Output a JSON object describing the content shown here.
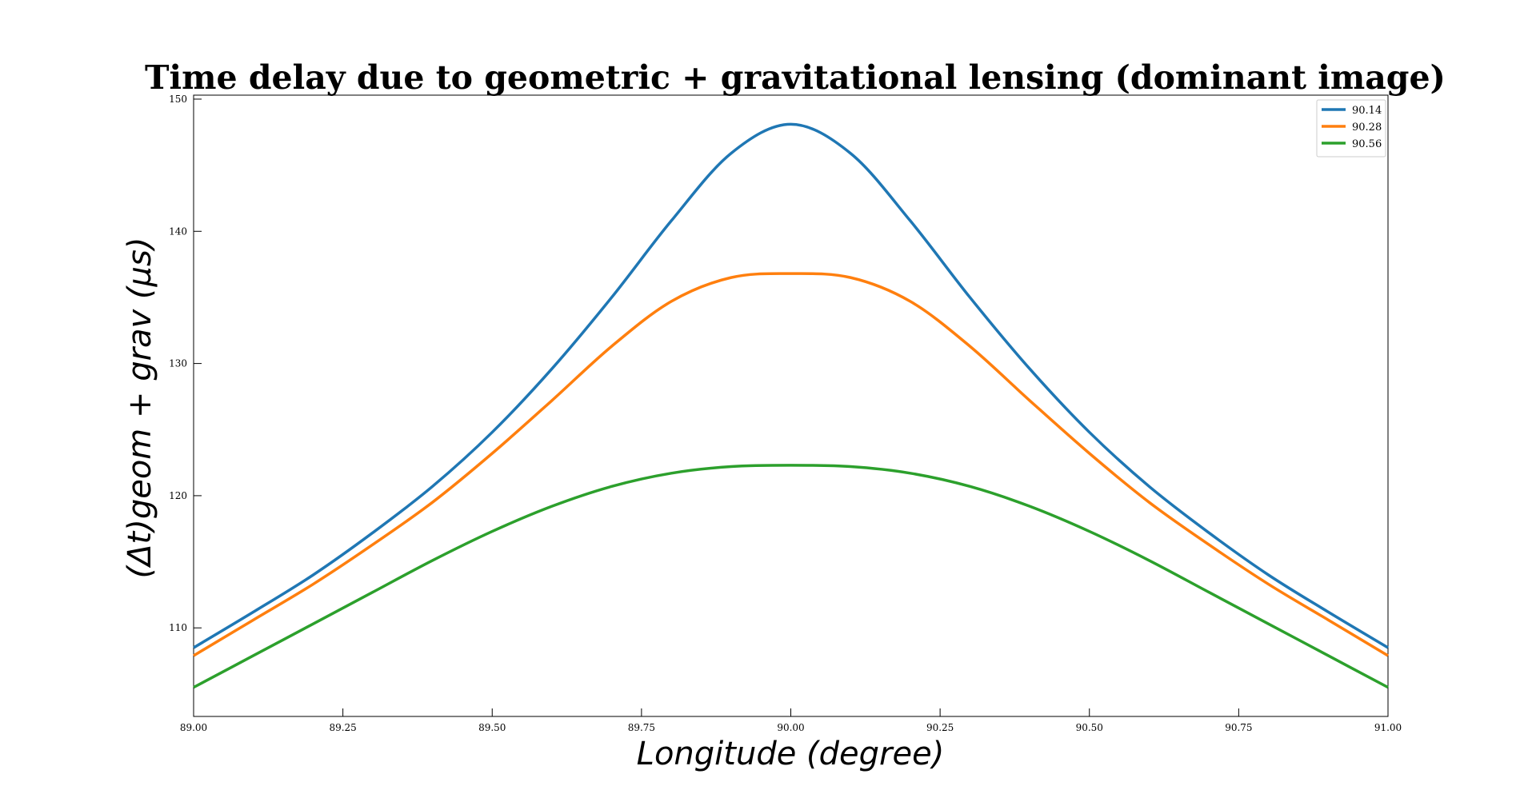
{
  "chart_data": {
    "type": "line",
    "title": "Time delay due to geometric + gravitational lensing (dominant image)",
    "xlabel": "Longitude   (degree)",
    "ylabel": "(Δt)geom + grav   (μs)",
    "xlim": [
      89.0,
      91.0
    ],
    "ylim": [
      103.3,
      150.3
    ],
    "xticks": [
      "89.00",
      "89.25",
      "89.50",
      "89.75",
      "90.00",
      "90.25",
      "90.50",
      "90.75",
      "91.00"
    ],
    "yticks": [
      "110",
      "120",
      "130",
      "140",
      "150"
    ],
    "grid": false,
    "legend_position": "top-right",
    "x": [
      89.0,
      89.1,
      89.2,
      89.3,
      89.4,
      89.5,
      89.6,
      89.7,
      89.8,
      89.9,
      90.0,
      90.1,
      90.2,
      90.3,
      90.4,
      90.5,
      90.6,
      90.7,
      90.8,
      90.9,
      91.0
    ],
    "series": [
      {
        "name": "90.14",
        "color": "#1f77b4",
        "values": [
          108.5,
          111.2,
          114.0,
          117.2,
          120.7,
          124.8,
          129.6,
          135.0,
          140.8,
          145.9,
          148.1,
          145.9,
          140.8,
          135.0,
          129.6,
          124.8,
          120.7,
          117.2,
          114.0,
          111.2,
          108.5
        ]
      },
      {
        "name": "90.28",
        "color": "#ff7f0e",
        "values": [
          107.9,
          110.6,
          113.3,
          116.3,
          119.5,
          123.2,
          127.2,
          131.3,
          134.7,
          136.5,
          136.8,
          136.5,
          134.7,
          131.3,
          127.2,
          123.2,
          119.5,
          116.3,
          113.3,
          110.6,
          107.9
        ]
      },
      {
        "name": "90.56",
        "color": "#2ca02c",
        "values": [
          105.5,
          107.9,
          110.3,
          112.7,
          115.1,
          117.3,
          119.2,
          120.7,
          121.7,
          122.2,
          122.3,
          122.2,
          121.7,
          120.7,
          119.2,
          117.3,
          115.1,
          112.7,
          110.3,
          107.9,
          105.5
        ]
      }
    ]
  }
}
